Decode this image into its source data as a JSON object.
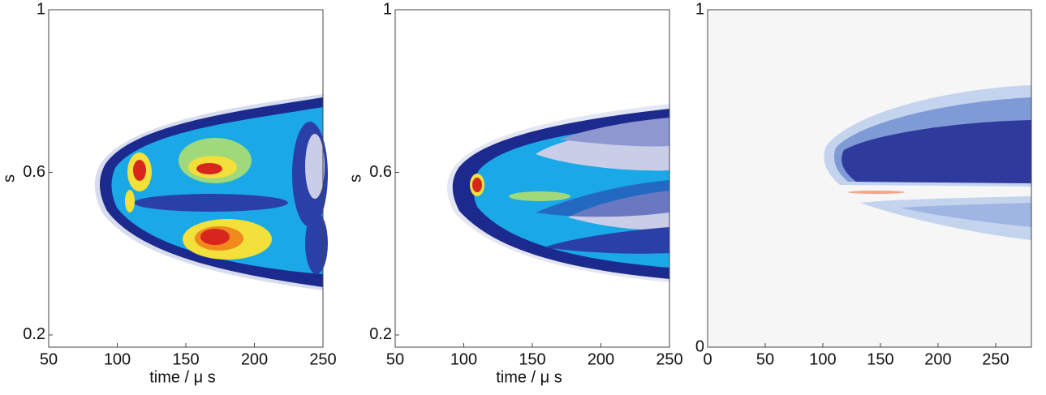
{
  "chart_data": [
    {
      "type": "contour",
      "xlabel": "time / μ s",
      "ylabel": "s",
      "xlim": [
        50,
        250
      ],
      "xticks": [
        50,
        100,
        150,
        200,
        250
      ],
      "ylim": [
        0.17,
        1
      ],
      "yticks": [
        0.2,
        0.6,
        1
      ]
    },
    {
      "type": "contour",
      "xlabel": "time / μ s",
      "ylabel": "s",
      "xlim": [
        50,
        250
      ],
      "xticks": [
        50,
        100,
        150,
        200,
        250
      ],
      "ylim": [
        0.17,
        1
      ],
      "yticks": [
        0.2,
        0.6,
        1
      ]
    },
    {
      "type": "contour",
      "xlim": [
        0,
        281
      ],
      "xticks": [
        0,
        50,
        100,
        150,
        200,
        250
      ],
      "ylim": [
        0,
        1
      ],
      "yticks": [
        0,
        1
      ]
    }
  ]
}
